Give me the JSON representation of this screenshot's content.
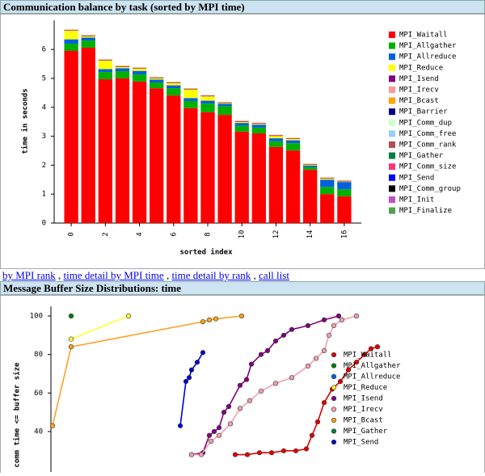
{
  "header1": "Communication balance by task (sorted by MPI time)",
  "links": [
    "by MPI rank",
    "time detail by MPI time",
    "time detail by rank",
    "call list"
  ],
  "link_separator": ",",
  "header2": "Message Buffer Size Distributions: time",
  "chart_data": [
    {
      "type": "bar",
      "stacked": true,
      "xlabel": "sorted index",
      "ylabel": "time in seconds",
      "x": [
        0,
        1,
        2,
        3,
        4,
        5,
        6,
        7,
        8,
        9,
        10,
        11,
        12,
        13,
        14,
        15,
        16
      ],
      "xlim": [
        -1,
        17
      ],
      "xticks": [
        0,
        2,
        4,
        6,
        8,
        10,
        12,
        14,
        16
      ],
      "ylim": [
        0,
        7
      ],
      "yticks": [
        0,
        1,
        2,
        3,
        4,
        5,
        6
      ],
      "series": [
        {
          "name": "MPI_Waitall",
          "color": "#ff0000",
          "values": [
            5.95,
            6.06,
            4.97,
            5.0,
            4.89,
            4.66,
            4.41,
            3.97,
            3.83,
            3.74,
            3.16,
            3.1,
            2.63,
            2.51,
            1.84,
            1.0,
            0.92
          ]
        },
        {
          "name": "MPI_Allgather",
          "color": "#00b000",
          "values": [
            0.25,
            0.25,
            0.25,
            0.25,
            0.25,
            0.2,
            0.25,
            0.25,
            0.3,
            0.3,
            0.2,
            0.2,
            0.2,
            0.25,
            0.1,
            0.25,
            0.25
          ]
        },
        {
          "name": "MPI_Allreduce",
          "color": "#0060e0",
          "values": [
            0.15,
            0.1,
            0.1,
            0.1,
            0.12,
            0.1,
            0.1,
            0.1,
            0.1,
            0.08,
            0.1,
            0.1,
            0.1,
            0.1,
            0.05,
            0.25,
            0.25
          ]
        },
        {
          "name": "MPI_Reduce",
          "color": "#ffff00",
          "values": [
            0.3,
            0.05,
            0.3,
            0.05,
            0.08,
            0.05,
            0.08,
            0.3,
            0.15,
            0.03,
            0.04,
            0.03,
            0.08,
            0.05,
            0.02,
            0.04,
            0.02
          ]
        },
        {
          "name": "MPI_Isend",
          "color": "#800080",
          "values": [
            0.02,
            0.02,
            0.02,
            0.02,
            0.02,
            0.02,
            0.02,
            0.02,
            0.02,
            0.02,
            0.02,
            0.02,
            0.02,
            0.02,
            0.02,
            0.02,
            0.02
          ]
        },
        {
          "name": "MPI_Irecv",
          "color": "#ff9999",
          "values": [
            0.01,
            0.01,
            0.01,
            0.01,
            0.01,
            0.01,
            0.01,
            0.01,
            0.01,
            0.01,
            0.01,
            0.01,
            0.01,
            0.01,
            0.01,
            0.01,
            0.01
          ]
        },
        {
          "name": "MPI_Bcast",
          "color": "#ffa500",
          "values": [
            0.01,
            0.01,
            0.01,
            0.01,
            0.01,
            0.01,
            0.01,
            0.01,
            0.01,
            0.01,
            0.01,
            0.01,
            0.01,
            0.01,
            0.01,
            0.01,
            0.01
          ]
        },
        {
          "name": "MPI_Barrier",
          "color": "#000080",
          "values": [
            0,
            0,
            0,
            0,
            0,
            0,
            0,
            0,
            0,
            0,
            0,
            0,
            0,
            0,
            0,
            0,
            0
          ]
        },
        {
          "name": "MPI_Comm_dup",
          "color": "#ccffcc",
          "values": [
            0,
            0,
            0,
            0,
            0,
            0,
            0,
            0,
            0,
            0,
            0,
            0,
            0,
            0,
            0,
            0,
            0
          ]
        },
        {
          "name": "MPI_Comm_free",
          "color": "#99ccff",
          "values": [
            0,
            0,
            0,
            0,
            0,
            0,
            0,
            0,
            0,
            0,
            0,
            0,
            0,
            0,
            0,
            0,
            0
          ]
        },
        {
          "name": "MPI_Comm_rank",
          "color": "#b05050",
          "values": [
            0,
            0,
            0,
            0,
            0,
            0,
            0,
            0,
            0,
            0,
            0,
            0,
            0,
            0,
            0,
            0,
            0
          ]
        },
        {
          "name": "MPI_Gather",
          "color": "#007f3f",
          "values": [
            0,
            0,
            0,
            0,
            0,
            0,
            0,
            0,
            0,
            0,
            0,
            0,
            0,
            0,
            0,
            0,
            0
          ]
        },
        {
          "name": "MPI_Comm_size",
          "color": "#ff3377",
          "values": [
            0,
            0,
            0,
            0,
            0,
            0,
            0,
            0,
            0,
            0,
            0,
            0,
            0,
            0,
            0,
            0,
            0
          ]
        },
        {
          "name": "MPI_Send",
          "color": "#0000ff",
          "values": [
            0,
            0,
            0,
            0,
            0,
            0,
            0,
            0,
            0,
            0,
            0,
            0,
            0,
            0,
            0,
            0,
            0
          ]
        },
        {
          "name": "MPI_Comm_group",
          "color": "#000000",
          "values": [
            0,
            0,
            0,
            0,
            0,
            0,
            0,
            0,
            0,
            0,
            0,
            0,
            0,
            0,
            0,
            0,
            0
          ]
        },
        {
          "name": "MPI_Init",
          "color": "#c050c0",
          "values": [
            0,
            0,
            0,
            0,
            0,
            0,
            0,
            0,
            0,
            0,
            0,
            0,
            0,
            0,
            0,
            0,
            0
          ]
        },
        {
          "name": "MPI_Finalize",
          "color": "#50a050",
          "values": [
            0,
            0,
            0,
            0,
            0,
            0,
            0,
            0,
            0,
            0,
            0,
            0,
            0,
            0,
            0,
            0,
            0
          ]
        }
      ]
    },
    {
      "type": "line",
      "ylabel": "% comm time <= buffer size",
      "xlim": [
        0,
        420
      ],
      "ylim": [
        0,
        105
      ],
      "yticks": [
        40,
        60,
        80,
        100
      ],
      "series": [
        {
          "name": "MPI_Waitall",
          "color": "#e00000",
          "x": [
            230,
            245,
            260,
            275,
            290,
            305,
            318,
            325,
            332,
            340,
            350,
            360,
            370,
            380,
            390,
            398,
            406
          ],
          "values": [
            28,
            28,
            29,
            29,
            30,
            30,
            31,
            38,
            45,
            55,
            62,
            66,
            72,
            76,
            80,
            83,
            84
          ]
        },
        {
          "name": "MPI_Allgather",
          "color": "#008000",
          "x": [
            27
          ],
          "values": [
            100
          ]
        },
        {
          "name": "MPI_Allreduce",
          "color": "#0060e0",
          "x": [],
          "values": []
        },
        {
          "name": "MPI_Reduce",
          "color": "#ffff33",
          "x": [
            27,
            98
          ],
          "values": [
            88,
            100
          ]
        },
        {
          "name": "MPI_Isend",
          "color": "#800080",
          "x": [
            176,
            190,
            198,
            204,
            210,
            216,
            222,
            236,
            244,
            250,
            262,
            270,
            280,
            290,
            300,
            320,
            340,
            358
          ],
          "values": [
            28,
            29,
            38,
            40,
            42,
            50,
            53,
            64,
            67,
            75,
            80,
            82,
            87,
            90,
            93,
            95,
            98,
            100
          ]
        },
        {
          "name": "MPI_Irecv",
          "color": "#f0a0b0",
          "x": [
            176,
            188,
            200,
            210,
            224,
            236,
            248,
            262,
            280,
            300,
            320,
            330,
            340,
            346,
            352,
            362,
            380
          ],
          "values": [
            28,
            28,
            35,
            38,
            44,
            52,
            56,
            61,
            65,
            68,
            74,
            78,
            82,
            90,
            95,
            98,
            100
          ]
        },
        {
          "name": "MPI_Bcast",
          "color": "#ffa020",
          "x": [
            4,
            27,
            190,
            198,
            206,
            238
          ],
          "values": [
            43,
            84,
            97,
            98,
            98.5,
            100
          ]
        },
        {
          "name": "MPI_Gather",
          "color": "#008040",
          "x": [],
          "values": []
        },
        {
          "name": "MPI_Send",
          "color": "#0000d0",
          "x": [
            162,
            169,
            173,
            176,
            183,
            190
          ],
          "values": [
            43,
            66,
            68,
            72,
            76,
            81
          ]
        }
      ]
    }
  ]
}
